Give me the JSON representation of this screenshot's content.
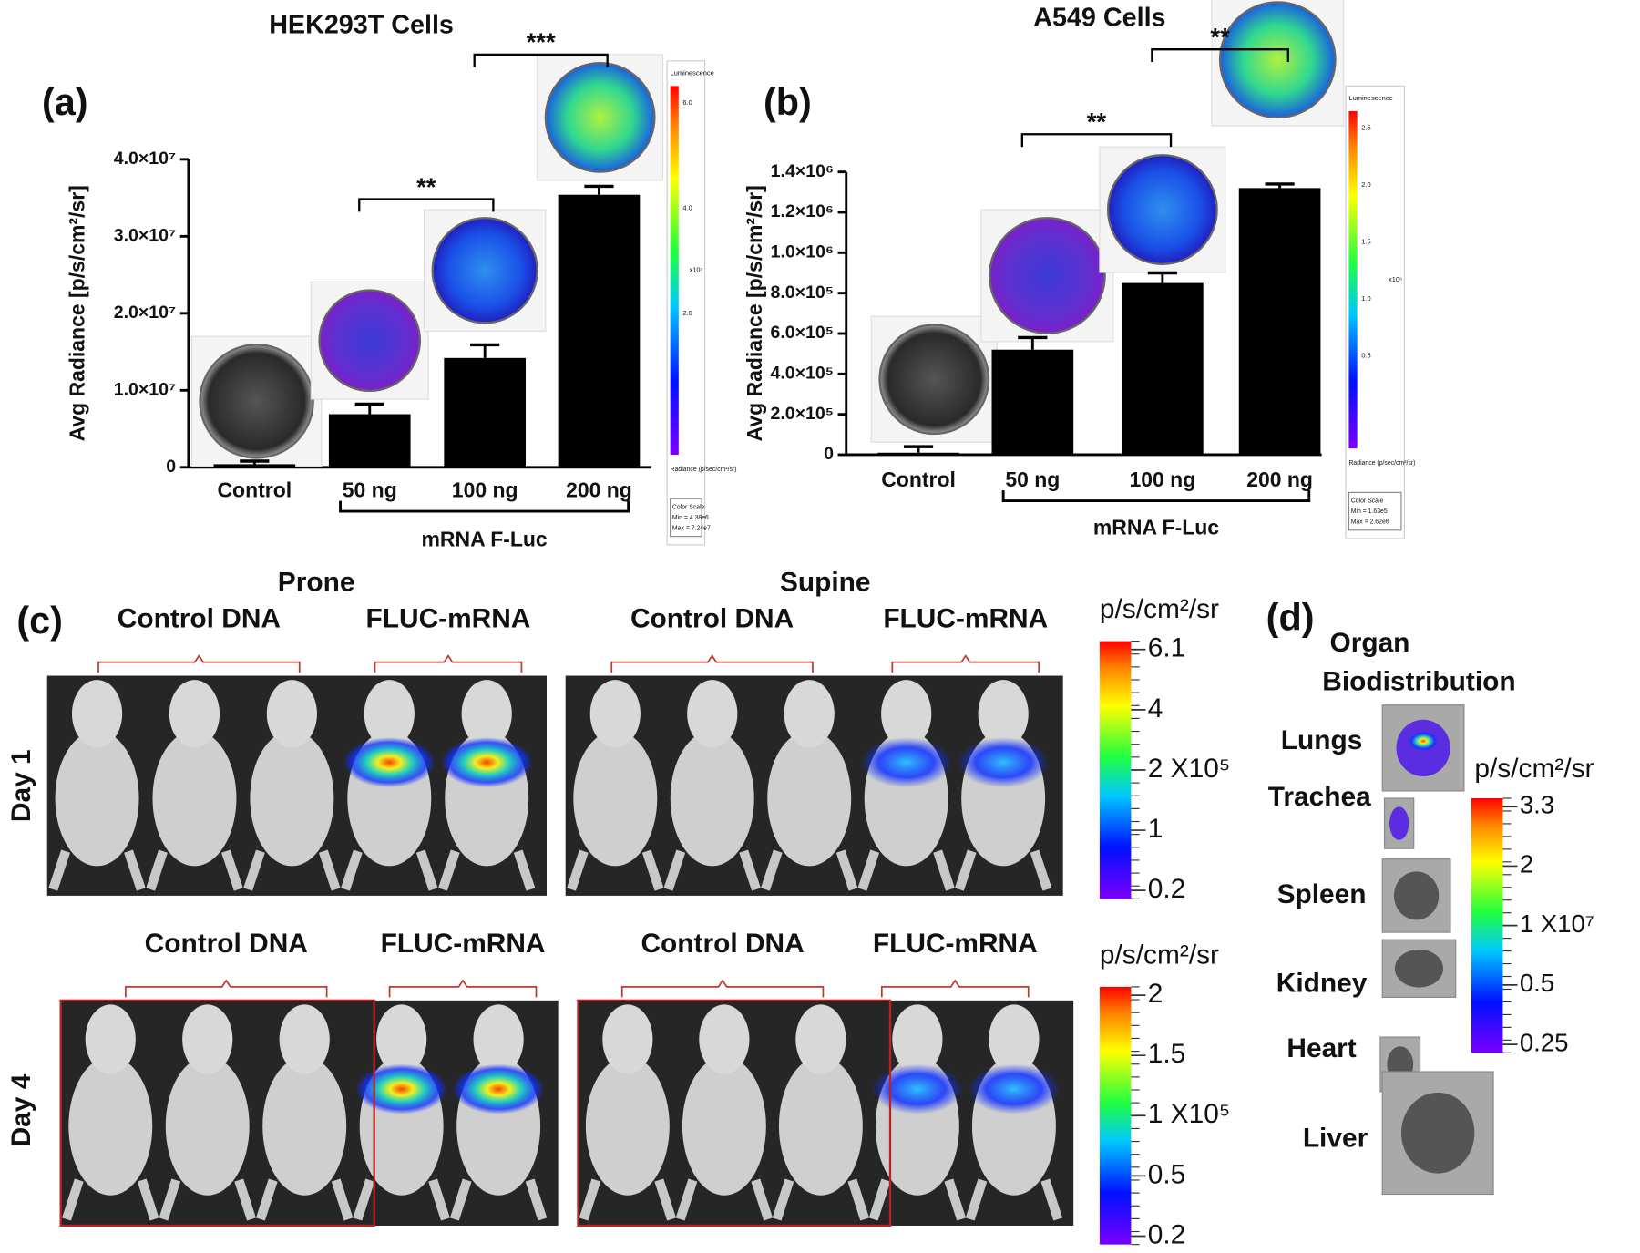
{
  "chart_data": [
    {
      "type": "bar",
      "panel_label": "(a)",
      "title": "HEK293T Cells",
      "y_label": "Avg Radiance [p/s/cm²/sr]",
      "categories": [
        "Control",
        "50 ng",
        "100 ng",
        "200 ng"
      ],
      "group_label": "mRNA F-Luc",
      "values": [
        400000,
        6900000,
        14200000,
        35400000
      ],
      "errors": [
        400000,
        1300000,
        1700000,
        1100000
      ],
      "color": "#000000",
      "ylim": [
        0,
        40000000
      ],
      "yticks": [
        0,
        {
          "value": 10000000,
          "label": "1.0×10⁷"
        },
        {
          "value": 20000000,
          "label": "2.0×10⁷"
        },
        {
          "value": 30000000,
          "label": "3.0×10⁷"
        },
        {
          "value": 40000000,
          "label": "4.0×10⁷"
        }
      ],
      "significance": [
        "**",
        "***"
      ],
      "inset": {
        "title": "Luminescence",
        "ticks": [
          "6.0",
          "4.0",
          "2.0"
        ],
        "unit": "x10⁷",
        "radiance": "Radiance (p/sec/cm²/sr)",
        "scale": "Color Scale",
        "min": "Min = 4.38e6",
        "max": "Max = 7.24e7"
      }
    },
    {
      "type": "bar",
      "panel_label": "(b)",
      "title": "A549 Cells",
      "y_label": "Avg Radiance [p/s/cm²/sr]",
      "categories": [
        "Control",
        "50 ng",
        "100 ng",
        "200 ng"
      ],
      "group_label": "mRNA F-Luc",
      "values": [
        10000,
        520000,
        850000,
        1320000
      ],
      "errors": [
        30000,
        60000,
        50000,
        20000
      ],
      "color": "#000000",
      "ylim": [
        0,
        1400000
      ],
      "yticks": [
        0,
        {
          "value": 200000,
          "label": "2.0×10⁵"
        },
        {
          "value": 400000,
          "label": "4.0×10⁵"
        },
        {
          "value": 600000,
          "label": "6.0×10⁵"
        },
        {
          "value": 800000,
          "label": "8.0×10⁵"
        },
        {
          "value": 1000000,
          "label": "1.0×10⁶"
        },
        {
          "value": 1200000,
          "label": "1.2×10⁶"
        },
        {
          "value": 1400000,
          "label": "1.4×10⁶"
        }
      ],
      "significance": [
        "**",
        "**"
      ],
      "inset": {
        "title": "Luminescence",
        "ticks": [
          "2.5",
          "2.0",
          "1.5",
          "1.0",
          "0.5"
        ],
        "unit": "x10⁶",
        "radiance": "Radiance (p/sec/cm²/sr)",
        "scale": "Color Scale",
        "min": "Min = 1.63e5",
        "max": "Max = 2.62e6"
      }
    }
  ],
  "panel_c": {
    "label": "(c)",
    "views": [
      "Prone",
      "Supine"
    ],
    "groups": [
      "Control DNA",
      "FLUC-mRNA"
    ],
    "days": [
      "Day 1",
      "Day 4"
    ],
    "colorbars": [
      {
        "unit": "p/s/cm²/sr",
        "ticks": [
          "6.1",
          "4",
          "2 X10⁵",
          "1",
          "0.2"
        ]
      },
      {
        "unit": "p/s/cm²/sr",
        "ticks": [
          "2",
          "1.5",
          "1 X10⁵",
          "0.5",
          "0.2"
        ]
      }
    ]
  },
  "panel_d": {
    "label": "(d)",
    "title": [
      "Organ",
      "Biodistribution"
    ],
    "organs": [
      "Lungs",
      "Trachea",
      "Spleen",
      "Kidney",
      "Heart",
      "Liver"
    ],
    "colorbar": {
      "unit": "p/s/cm²/sr",
      "ticks": [
        "3.3",
        "2",
        "1 X10⁷",
        "0.5",
        "0.25"
      ]
    }
  }
}
